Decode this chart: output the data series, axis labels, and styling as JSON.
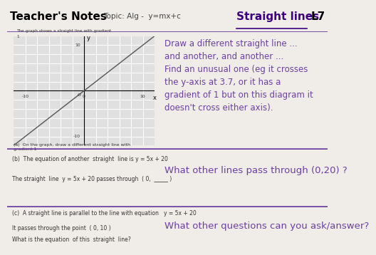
{
  "bg_color": "#f0ede8",
  "header_bg": "#ffffff",
  "title_left": "Teacher's Notes",
  "topic": "Topic: Alg -  y=mx+c",
  "title_right": "Straight lines",
  "level": "L7",
  "purple": "#6b3fa0",
  "dark_purple": "#3d0080",
  "gray": "#888888",
  "black": "#1a1a1a",
  "graph_note_top": "The graph shows a straight line with gradient",
  "graph_note_top2": "1",
  "graph_note_a": "(a)  On the graph, draw a different straight line with\ngradient 1",
  "section_b_text": "(b)  The equation of another  straight  line is y = 5x + 20",
  "section_b_sub": "The straight  line  y = 5x + 20 passes through  ( 0,  _____ )",
  "section_c_text": "(c)  A straight line is parallel to the line with equation   y = 5x + 20",
  "section_c_sub1": "It passes through the point  ( 0, 10 )",
  "section_c_sub2": "What is the equation  of this  straight  line?",
  "right_text1": "Draw a different straight line ...\nand another, and another ...\nFind an unusual one (eg it crosses\nthe y-axis at 3.7, or it has a\ngradient of 1 but on this diagram it\ndoesn't cross either axis).",
  "right_text2": "What other lines pass through (0,20) ?",
  "right_text3": "What other questions can you ask/answer?",
  "xlim": [
    -12,
    12
  ],
  "ylim": [
    -12,
    12
  ],
  "separator1_y": 0.415,
  "separator2_y": 0.17
}
